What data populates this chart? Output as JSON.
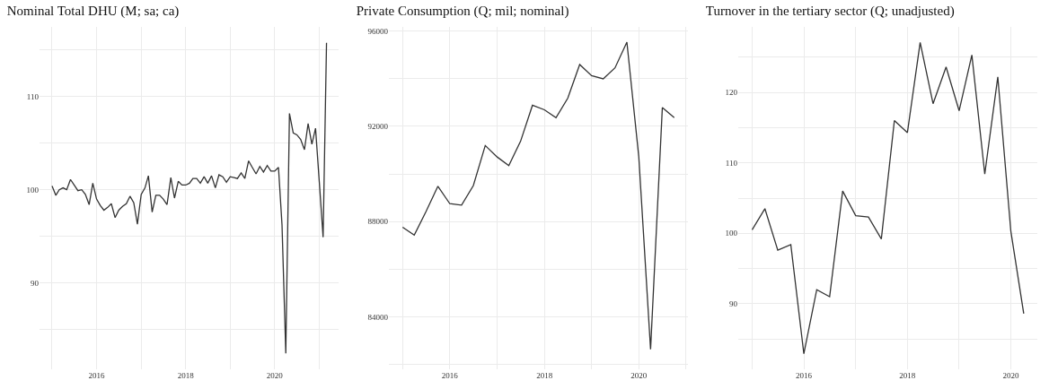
{
  "chart_data": [
    {
      "type": "line",
      "title": "Nominal Total DHU (M; sa; ca)",
      "color": "#333333",
      "grid": true,
      "x": [
        "2015-01",
        "2015-02",
        "2015-03",
        "2015-04",
        "2015-05",
        "2015-06",
        "2015-07",
        "2015-08",
        "2015-09",
        "2015-10",
        "2015-11",
        "2015-12",
        "2016-01",
        "2016-02",
        "2016-03",
        "2016-04",
        "2016-05",
        "2016-06",
        "2016-07",
        "2016-08",
        "2016-09",
        "2016-10",
        "2016-11",
        "2016-12",
        "2017-01",
        "2017-02",
        "2017-03",
        "2017-04",
        "2017-05",
        "2017-06",
        "2017-07",
        "2017-08",
        "2017-09",
        "2017-10",
        "2017-11",
        "2017-12",
        "2018-01",
        "2018-02",
        "2018-03",
        "2018-04",
        "2018-05",
        "2018-06",
        "2018-07",
        "2018-08",
        "2018-09",
        "2018-10",
        "2018-11",
        "2018-12",
        "2019-01",
        "2019-02",
        "2019-03",
        "2019-04",
        "2019-05",
        "2019-06",
        "2019-07",
        "2019-08",
        "2019-09",
        "2019-10",
        "2019-11",
        "2019-12",
        "2020-01",
        "2020-02",
        "2020-03",
        "2020-04",
        "2020-05",
        "2020-06",
        "2020-07",
        "2020-08",
        "2020-09",
        "2020-10",
        "2020-11",
        "2020-12",
        "2021-01",
        "2021-02",
        "2021-03"
      ],
      "values": [
        100.4,
        99.4,
        100.0,
        100.2,
        100.0,
        101.1,
        100.5,
        99.9,
        100.0,
        99.5,
        98.4,
        100.7,
        99.0,
        98.3,
        97.8,
        98.1,
        98.5,
        97.0,
        97.8,
        98.2,
        98.5,
        99.3,
        98.6,
        96.3,
        99.5,
        100.2,
        101.5,
        97.6,
        99.4,
        99.4,
        99.0,
        98.4,
        101.3,
        99.1,
        100.9,
        100.5,
        100.5,
        100.7,
        101.2,
        101.2,
        100.7,
        101.4,
        100.7,
        101.5,
        100.2,
        101.6,
        101.4,
        100.8,
        101.4,
        101.3,
        101.2,
        101.8,
        101.2,
        103.1,
        102.4,
        101.7,
        102.5,
        101.9,
        102.6,
        102.0,
        102.0,
        102.4,
        96.2,
        82.4,
        108.2,
        106.1,
        105.9,
        105.4,
        104.3,
        107.1,
        104.9,
        106.6,
        100.8,
        94.9,
        115.8
      ],
      "xlim": [
        "2014-09-20",
        "2021-06-08"
      ],
      "xticks": [
        {
          "value": "2015",
          "label": null
        },
        "2016",
        {
          "value": "2017",
          "label": null
        },
        "2018",
        {
          "value": "2019",
          "label": null
        },
        "2020",
        {
          "value": "2021",
          "label": null
        }
      ],
      "ylim": [
        80.7,
        117.5
      ],
      "yticks": [
        {
          "value": 85,
          "label": null
        },
        90,
        {
          "value": 95,
          "label": null
        },
        100,
        {
          "value": 105,
          "label": null
        },
        110,
        {
          "value": 115,
          "label": null
        }
      ]
    },
    {
      "type": "line",
      "title": "Private Consumption (Q; mil; nominal)",
      "color": "#333333",
      "grid": true,
      "x": [
        "2015-01",
        "2015-04",
        "2015-07",
        "2015-10",
        "2016-01",
        "2016-04",
        "2016-07",
        "2016-10",
        "2017-01",
        "2017-04",
        "2017-07",
        "2017-10",
        "2018-01",
        "2018-04",
        "2018-07",
        "2018-10",
        "2019-01",
        "2019-04",
        "2019-07",
        "2019-10",
        "2020-01",
        "2020-04",
        "2020-07",
        "2020-10"
      ],
      "values": [
        87760,
        87430,
        88420,
        89480,
        88750,
        88690,
        89510,
        91190,
        90710,
        90350,
        91370,
        92880,
        92690,
        92360,
        93180,
        94590,
        94120,
        93990,
        94450,
        95530,
        90710,
        82640,
        92780,
        92360
      ],
      "xlim": [
        "2014-09-17",
        "2021-01-15"
      ],
      "xticks": [
        {
          "value": "2015",
          "label": null
        },
        "2016",
        {
          "value": "2017",
          "label": null
        },
        "2018",
        {
          "value": "2019",
          "label": null
        },
        "2020",
        {
          "value": "2021",
          "label": null
        }
      ],
      "ylim": [
        81800,
        96170
      ],
      "yticks": [
        {
          "value": 82000,
          "label": null
        },
        84000,
        {
          "value": 86000,
          "label": null
        },
        88000,
        {
          "value": 90000,
          "label": null
        },
        92000,
        {
          "value": 94000,
          "label": null
        },
        96000
      ]
    },
    {
      "type": "line",
      "title": "Turnover in the tertiary sector (Q; unadjusted)",
      "color": "#333333",
      "grid": true,
      "x": [
        "2015-01",
        "2015-04",
        "2015-07",
        "2015-10",
        "2016-01",
        "2016-04",
        "2016-07",
        "2016-10",
        "2017-01",
        "2017-04",
        "2017-07",
        "2017-10",
        "2018-01",
        "2018-04",
        "2018-07",
        "2018-10",
        "2019-01",
        "2019-04",
        "2019-07",
        "2019-10",
        "2020-01",
        "2020-04"
      ],
      "values": [
        100.5,
        103.5,
        97.6,
        98.4,
        82.9,
        92.0,
        91.0,
        106.0,
        102.5,
        102.3,
        99.2,
        116.0,
        114.3,
        127.1,
        118.4,
        123.6,
        117.4,
        125.3,
        108.4,
        122.2,
        100.3,
        88.6
      ],
      "xlim": [
        "2014-09-25",
        "2020-07-06"
      ],
      "xticks": [
        {
          "value": "2015",
          "label": null
        },
        "2016",
        {
          "value": "2017",
          "label": null
        },
        "2018",
        {
          "value": "2019",
          "label": null
        },
        "2020"
      ],
      "ylim": [
        80.7,
        129.3
      ],
      "yticks": [
        {
          "value": 85,
          "label": null
        },
        90,
        {
          "value": 95,
          "label": null
        },
        100,
        {
          "value": 105,
          "label": null
        },
        110,
        {
          "value": 115,
          "label": null
        },
        120,
        {
          "value": 125,
          "label": null
        }
      ]
    }
  ]
}
